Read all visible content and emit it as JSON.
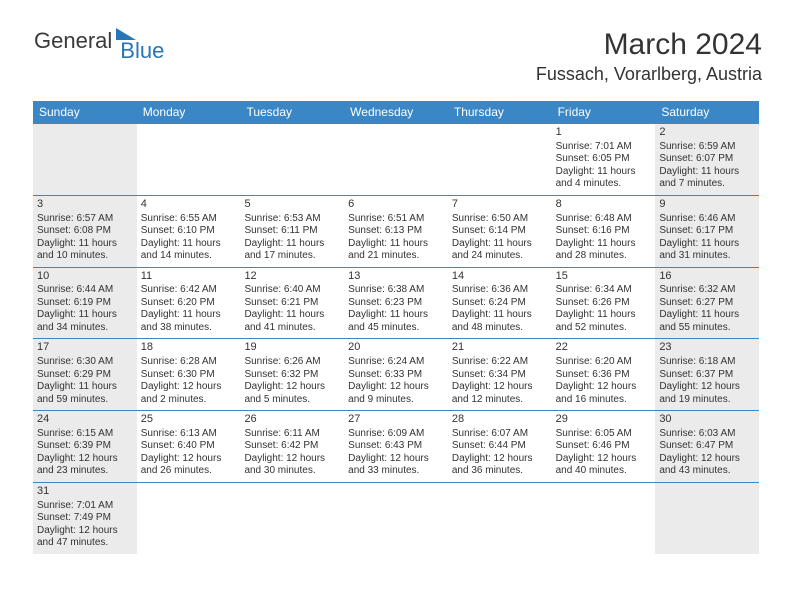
{
  "logo": {
    "general": "General",
    "blue": "Blue"
  },
  "title": "March 2024",
  "location": "Fussach, Vorarlberg, Austria",
  "colors": {
    "header_bg": "#3b86c4",
    "header_text": "#ffffff",
    "shaded_bg": "#ebebeb",
    "row_border": "#3b86c4",
    "text": "#333333",
    "logo_blue": "#2776b8"
  },
  "day_labels": [
    "Sunday",
    "Monday",
    "Tuesday",
    "Wednesday",
    "Thursday",
    "Friday",
    "Saturday"
  ],
  "weeks": [
    [
      {
        "blank": true
      },
      {
        "blank": true
      },
      {
        "blank": true
      },
      {
        "blank": true
      },
      {
        "blank": true
      },
      {
        "num": "1",
        "sunrise": "7:01 AM",
        "sunset": "6:05 PM",
        "daylight": "11 hours and 4 minutes."
      },
      {
        "num": "2",
        "sunrise": "6:59 AM",
        "sunset": "6:07 PM",
        "daylight": "11 hours and 7 minutes."
      }
    ],
    [
      {
        "num": "3",
        "sunrise": "6:57 AM",
        "sunset": "6:08 PM",
        "daylight": "11 hours and 10 minutes."
      },
      {
        "num": "4",
        "sunrise": "6:55 AM",
        "sunset": "6:10 PM",
        "daylight": "11 hours and 14 minutes."
      },
      {
        "num": "5",
        "sunrise": "6:53 AM",
        "sunset": "6:11 PM",
        "daylight": "11 hours and 17 minutes."
      },
      {
        "num": "6",
        "sunrise": "6:51 AM",
        "sunset": "6:13 PM",
        "daylight": "11 hours and 21 minutes."
      },
      {
        "num": "7",
        "sunrise": "6:50 AM",
        "sunset": "6:14 PM",
        "daylight": "11 hours and 24 minutes."
      },
      {
        "num": "8",
        "sunrise": "6:48 AM",
        "sunset": "6:16 PM",
        "daylight": "11 hours and 28 minutes."
      },
      {
        "num": "9",
        "sunrise": "6:46 AM",
        "sunset": "6:17 PM",
        "daylight": "11 hours and 31 minutes."
      }
    ],
    [
      {
        "num": "10",
        "sunrise": "6:44 AM",
        "sunset": "6:19 PM",
        "daylight": "11 hours and 34 minutes."
      },
      {
        "num": "11",
        "sunrise": "6:42 AM",
        "sunset": "6:20 PM",
        "daylight": "11 hours and 38 minutes."
      },
      {
        "num": "12",
        "sunrise": "6:40 AM",
        "sunset": "6:21 PM",
        "daylight": "11 hours and 41 minutes."
      },
      {
        "num": "13",
        "sunrise": "6:38 AM",
        "sunset": "6:23 PM",
        "daylight": "11 hours and 45 minutes."
      },
      {
        "num": "14",
        "sunrise": "6:36 AM",
        "sunset": "6:24 PM",
        "daylight": "11 hours and 48 minutes."
      },
      {
        "num": "15",
        "sunrise": "6:34 AM",
        "sunset": "6:26 PM",
        "daylight": "11 hours and 52 minutes."
      },
      {
        "num": "16",
        "sunrise": "6:32 AM",
        "sunset": "6:27 PM",
        "daylight": "11 hours and 55 minutes."
      }
    ],
    [
      {
        "num": "17",
        "sunrise": "6:30 AM",
        "sunset": "6:29 PM",
        "daylight": "11 hours and 59 minutes."
      },
      {
        "num": "18",
        "sunrise": "6:28 AM",
        "sunset": "6:30 PM",
        "daylight": "12 hours and 2 minutes."
      },
      {
        "num": "19",
        "sunrise": "6:26 AM",
        "sunset": "6:32 PM",
        "daylight": "12 hours and 5 minutes."
      },
      {
        "num": "20",
        "sunrise": "6:24 AM",
        "sunset": "6:33 PM",
        "daylight": "12 hours and 9 minutes."
      },
      {
        "num": "21",
        "sunrise": "6:22 AM",
        "sunset": "6:34 PM",
        "daylight": "12 hours and 12 minutes."
      },
      {
        "num": "22",
        "sunrise": "6:20 AM",
        "sunset": "6:36 PM",
        "daylight": "12 hours and 16 minutes."
      },
      {
        "num": "23",
        "sunrise": "6:18 AM",
        "sunset": "6:37 PM",
        "daylight": "12 hours and 19 minutes."
      }
    ],
    [
      {
        "num": "24",
        "sunrise": "6:15 AM",
        "sunset": "6:39 PM",
        "daylight": "12 hours and 23 minutes."
      },
      {
        "num": "25",
        "sunrise": "6:13 AM",
        "sunset": "6:40 PM",
        "daylight": "12 hours and 26 minutes."
      },
      {
        "num": "26",
        "sunrise": "6:11 AM",
        "sunset": "6:42 PM",
        "daylight": "12 hours and 30 minutes."
      },
      {
        "num": "27",
        "sunrise": "6:09 AM",
        "sunset": "6:43 PM",
        "daylight": "12 hours and 33 minutes."
      },
      {
        "num": "28",
        "sunrise": "6:07 AM",
        "sunset": "6:44 PM",
        "daylight": "12 hours and 36 minutes."
      },
      {
        "num": "29",
        "sunrise": "6:05 AM",
        "sunset": "6:46 PM",
        "daylight": "12 hours and 40 minutes."
      },
      {
        "num": "30",
        "sunrise": "6:03 AM",
        "sunset": "6:47 PM",
        "daylight": "12 hours and 43 minutes."
      }
    ],
    [
      {
        "num": "31",
        "sunrise": "7:01 AM",
        "sunset": "7:49 PM",
        "daylight": "12 hours and 47 minutes."
      },
      {
        "blank": true
      },
      {
        "blank": true
      },
      {
        "blank": true
      },
      {
        "blank": true
      },
      {
        "blank": true
      },
      {
        "blank": true
      }
    ]
  ],
  "labels": {
    "sunrise": "Sunrise: ",
    "sunset": "Sunset: ",
    "daylight": "Daylight: "
  }
}
